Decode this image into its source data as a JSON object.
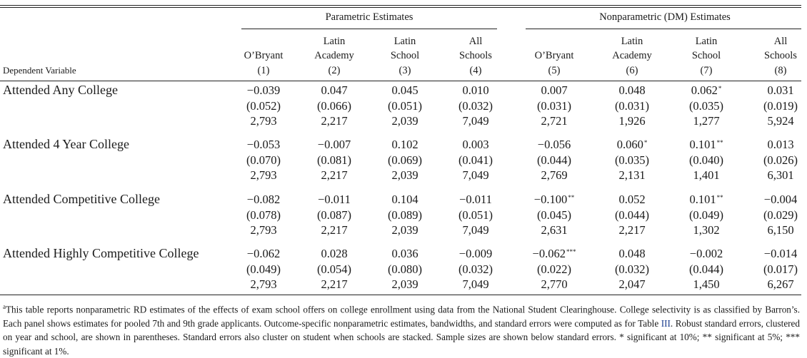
{
  "header": {
    "group_parametric": "Parametric Estimates",
    "group_nonparametric": "Nonparametric (DM) Estimates",
    "dependent_variable": "Dependent Variable",
    "columns": [
      {
        "l1": "",
        "l2": "O’Bryant",
        "num": "(1)"
      },
      {
        "l1": "Latin",
        "l2": "Academy",
        "num": "(2)"
      },
      {
        "l1": "Latin",
        "l2": "School",
        "num": "(3)"
      },
      {
        "l1": "All",
        "l2": "Schools",
        "num": "(4)"
      },
      {
        "l1": "",
        "l2": "O’Bryant",
        "num": "(5)"
      },
      {
        "l1": "Latin",
        "l2": "Academy",
        "num": "(6)"
      },
      {
        "l1": "Latin",
        "l2": "School",
        "num": "(7)"
      },
      {
        "l1": "All",
        "l2": "Schools",
        "num": "(8)"
      }
    ]
  },
  "rows": [
    {
      "label": "Attended Any College",
      "estimates": [
        "−0.039",
        "0.047",
        "0.045",
        "0.010",
        "0.007",
        "0.048",
        "0.062",
        "0.031"
      ],
      "stars": [
        "",
        "",
        "",
        "",
        "",
        "",
        "*",
        ""
      ],
      "ses": [
        "(0.052)",
        "(0.066)",
        "(0.051)",
        "(0.032)",
        "(0.031)",
        "(0.031)",
        "(0.035)",
        "(0.019)"
      ],
      "ns": [
        "2,793",
        "2,217",
        "2,039",
        "7,049",
        "2,721",
        "1,926",
        "1,277",
        "5,924"
      ]
    },
    {
      "label": "Attended 4 Year College",
      "estimates": [
        "−0.053",
        "−0.007",
        "0.102",
        "0.003",
        "−0.056",
        "0.060",
        "0.101",
        "0.013"
      ],
      "stars": [
        "",
        "",
        "",
        "",
        "",
        "*",
        "**",
        ""
      ],
      "ses": [
        "(0.070)",
        "(0.081)",
        "(0.069)",
        "(0.041)",
        "(0.044)",
        "(0.035)",
        "(0.040)",
        "(0.026)"
      ],
      "ns": [
        "2,793",
        "2,217",
        "2,039",
        "7,049",
        "2,769",
        "2,131",
        "1,401",
        "6,301"
      ]
    },
    {
      "label": "Attended Competitive College",
      "estimates": [
        "−0.082",
        "−0.011",
        "0.104",
        "−0.011",
        "−0.100",
        "0.052",
        "0.101",
        "−0.004"
      ],
      "stars": [
        "",
        "",
        "",
        "",
        "**",
        "",
        "**",
        ""
      ],
      "ses": [
        "(0.078)",
        "(0.087)",
        "(0.089)",
        "(0.051)",
        "(0.045)",
        "(0.044)",
        "(0.049)",
        "(0.029)"
      ],
      "ns": [
        "2,793",
        "2,217",
        "2,039",
        "7,049",
        "2,631",
        "2,217",
        "1,302",
        "6,150"
      ]
    },
    {
      "label": "Attended Highly Competitive College",
      "estimates": [
        "−0.062",
        "0.028",
        "0.036",
        "−0.009",
        "−0.062",
        "0.048",
        "−0.002",
        "−0.014"
      ],
      "stars": [
        "",
        "",
        "",
        "",
        "***",
        "",
        "",
        ""
      ],
      "ses": [
        "(0.049)",
        "(0.054)",
        "(0.080)",
        "(0.032)",
        "(0.022)",
        "(0.032)",
        "(0.044)",
        "(0.017)"
      ],
      "ns": [
        "2,793",
        "2,217",
        "2,039",
        "7,049",
        "2,770",
        "2,047",
        "1,450",
        "6,267"
      ]
    }
  ],
  "footnote": {
    "marker": "a",
    "text_before_ref": "This table reports nonparametric RD estimates of the effects of exam school offers on college enrollment using data from the National Student Clearinghouse. College selectivity is as classified by Barron’s. Each panel shows estimates for pooled 7th and 9th grade applicants. Outcome-specific nonparametric estimates, bandwidths, and standard errors were computed as for Table ",
    "ref": "III",
    "text_after_ref": ". Robust standard errors, clustered on year and school, are shown in parentheses. Standard errors also cluster on student when schools are stacked. Sample sizes are shown below standard errors. * significant at 10%; ** significant at 5%; *** significant at 1%."
  }
}
